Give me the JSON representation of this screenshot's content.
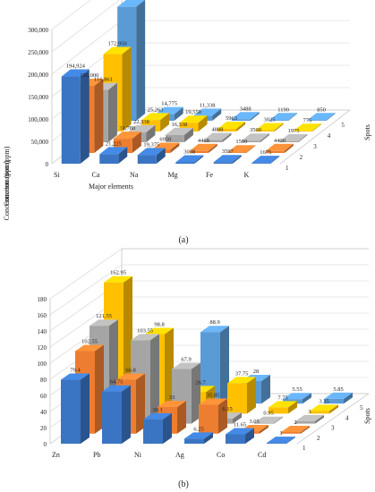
{
  "colors": [
    "#3a75c4",
    "#ed7d31",
    "#a5a5a5",
    "#ffc000",
    "#5b9bd5"
  ],
  "chart_data": [
    {
      "type": "bar",
      "panel_label": "(a)",
      "xlabel": "Major elements",
      "ylabel": "Concentration (ppm)",
      "zlabel": "Spots",
      "ylim": [
        0,
        300000
      ],
      "yticks": [
        "0",
        "50,000",
        "100,000",
        "150,000",
        "200,000",
        "250,000",
        "300,000"
      ],
      "categories": [
        "Si",
        "Ca",
        "Na",
        "Mg",
        "Fe",
        "K"
      ],
      "spots": [
        "1",
        "2",
        "3",
        "4",
        "5"
      ],
      "series": [
        {
          "spot": "1",
          "values": [
            194924,
            21225,
            19375,
            3038,
            3597,
            1675
          ],
          "labels": [
            "194,924",
            "21,225",
            "19,375",
            "3038",
            "3597",
            "1675"
          ]
        },
        {
          "spot": "2",
          "values": [
            150000,
            31788,
            6950,
            4418,
            1550,
            4400
          ],
          "labels": [
            "150,000",
            "31,788",
            "6950",
            "4418",
            "1550",
            "4400"
          ]
        },
        {
          "spot": "3",
          "values": [
            116861,
            22338,
            16338,
            4888,
            3590,
            1975
          ],
          "labels": [
            "116,861",
            "22,338",
            "16,338",
            "4888",
            "3590",
            "1975"
          ]
        },
        {
          "spot": "4",
          "values": [
            172950,
            25263,
            19550,
            5963,
            3025,
            775
          ],
          "labels": [
            "172,950",
            "25,263",
            "19,550",
            "5963",
            "3025",
            "775"
          ]
        },
        {
          "spot": "5",
          "values": [
            254756,
            14775,
            11338,
            3488,
            1190,
            850
          ],
          "labels": [
            "254,756",
            "14,775",
            "11,338",
            "3488",
            "1190",
            "850"
          ]
        }
      ]
    },
    {
      "type": "bar",
      "panel_label": "(b)",
      "xlabel": "",
      "ylabel": "Concentration (ppm)",
      "zlabel": "Spots",
      "ylim": [
        0,
        180
      ],
      "yticks": [
        "0",
        "20",
        "40",
        "60",
        "80",
        "100",
        "120",
        "140",
        "160",
        "180"
      ],
      "categories": [
        "Zn",
        "Pb",
        "Ni",
        "Ag",
        "Co",
        "Cd"
      ],
      "spots": [
        "1",
        "2",
        "3",
        "4",
        "5"
      ],
      "series": [
        {
          "spot": "1",
          "values": [
            79.4,
            64.75,
            30.1,
            6.25,
            11.65,
            1
          ],
          "labels": [
            "79.4",
            "64.75",
            "30.1",
            "6.25",
            "11.65",
            "1"
          ]
        },
        {
          "spot": "2",
          "values": [
            102.55,
            66.8,
            33,
            35.85,
            3.05,
            2
          ],
          "labels": [
            "102.55",
            "66.8",
            "33",
            "35.85",
            "3.05",
            "2"
          ]
        },
        {
          "spot": "3",
          "values": [
            121.55,
            103.55,
            67.9,
            6.15,
            0.95,
            3
          ],
          "labels": [
            "121.55",
            "103.55",
            "67.9",
            "6.15",
            "0.95",
            "3"
          ]
        },
        {
          "spot": "4",
          "values": [
            162.95,
            98.8,
            26.7,
            37.75,
            7.75,
            3.35
          ],
          "labels": [
            "162.95",
            "98.8",
            "26.7",
            "37.75",
            "7.75",
            "3.35"
          ]
        },
        {
          "spot": "5",
          "values": [
            0,
            0,
            88.9,
            28,
            5.55,
            5.85
          ],
          "labels": [
            "",
            "",
            "88.9",
            "28",
            "5.55",
            "5.85"
          ]
        }
      ]
    }
  ]
}
